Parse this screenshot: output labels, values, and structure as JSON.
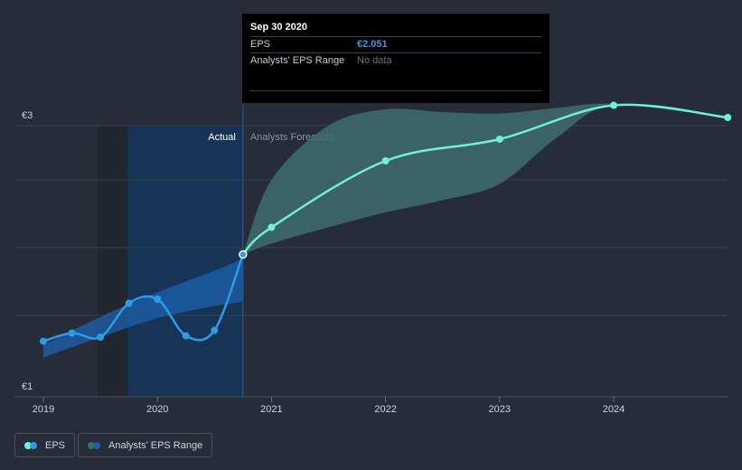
{
  "colors": {
    "background": "#262c38",
    "eps_line": "#2f9be8",
    "forecast_line": "#6ff0d9",
    "forecast_band": "#3f6c6c",
    "actual_band": "#1c5fa8",
    "actual_highlight": "#173456",
    "grid": "#3a404c"
  },
  "tooltip": {
    "date": "Sep 30 2020",
    "eps_label": "EPS",
    "eps_value": "€2.051",
    "range_label": "Analysts' EPS Range",
    "range_value": "No data"
  },
  "chart_data": {
    "type": "line",
    "y_unit": "€",
    "ylim": [
      1,
      3
    ],
    "y_ticks": [
      {
        "value": 3,
        "label": "€3"
      },
      {
        "value": 1,
        "label": "€1"
      }
    ],
    "x_ticks": [
      2019,
      2020,
      2021,
      2022,
      2023,
      2024
    ],
    "region_labels": {
      "actual": "Actual",
      "forecast": "Analysts Forecasts"
    },
    "series": [
      {
        "name": "EPS",
        "points": [
          [
            2019.0,
            1.41
          ],
          [
            2019.25,
            1.47
          ],
          [
            2019.5,
            1.44
          ],
          [
            2019.75,
            1.69
          ],
          [
            2020.0,
            1.72
          ],
          [
            2020.25,
            1.45
          ],
          [
            2020.5,
            1.49
          ],
          [
            2020.75,
            2.05
          ]
        ]
      },
      {
        "name": "EPS forecast",
        "points": [
          [
            2020.75,
            2.05
          ],
          [
            2021.0,
            2.25
          ],
          [
            2022.0,
            2.74
          ],
          [
            2023.0,
            2.9
          ],
          [
            2024.0,
            3.15
          ],
          [
            2025.0,
            3.06
          ]
        ]
      }
    ],
    "actual_range": {
      "x": [
        2019.0,
        2019.5,
        2020.0,
        2020.5,
        2020.75
      ],
      "low": [
        1.29,
        1.44,
        1.58,
        1.67,
        1.7
      ],
      "high": [
        1.38,
        1.59,
        1.77,
        1.93,
        2.02
      ]
    },
    "forecast_range": {
      "name": "Analysts' EPS Range",
      "x": [
        2020.75,
        2021.0,
        2021.5,
        2022.0,
        2022.5,
        2023.0,
        2023.5,
        2024.0,
        2025.0
      ],
      "low": [
        2.05,
        2.13,
        2.25,
        2.36,
        2.45,
        2.57,
        2.91,
        3.15,
        3.06
      ],
      "high": [
        2.05,
        2.6,
        3.0,
        3.12,
        3.1,
        3.09,
        3.13,
        3.16,
        3.06
      ]
    },
    "legend": [
      "EPS",
      "Analysts' EPS Range"
    ]
  }
}
